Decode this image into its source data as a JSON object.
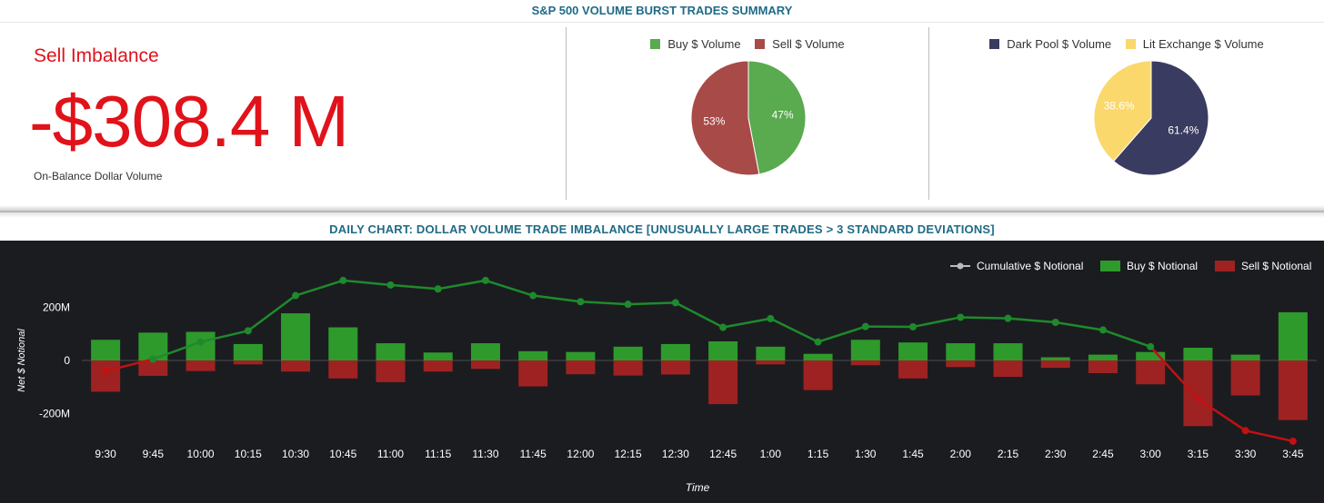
{
  "header": {
    "title": "S&P 500 VOLUME BURST TRADES SUMMARY"
  },
  "imbalance": {
    "label": "Sell Imbalance",
    "value": "-$308.4 M",
    "sublabel": "On-Balance Dollar Volume",
    "color": "#e1121a"
  },
  "pie_buy_sell": {
    "legend": [
      "Buy $ Volume",
      "Sell $ Volume"
    ],
    "slices": [
      {
        "name": "Buy $ Volume",
        "pct": 47,
        "label": "47%",
        "color": "#5aaa4f"
      },
      {
        "name": "Sell $ Volume",
        "pct": 53,
        "label": "53%",
        "color": "#a84a47"
      }
    ]
  },
  "pie_dark_lit": {
    "legend": [
      "Dark Pool $ Volume",
      "Lit Exchange $ Volume"
    ],
    "slices": [
      {
        "name": "Dark Pool $ Volume",
        "pct": 61.4,
        "label": "61.4%",
        "color": "#3a3b60"
      },
      {
        "name": "Lit Exchange $ Volume",
        "pct": 38.6,
        "label": "38.6%",
        "color": "#fad86c"
      }
    ]
  },
  "daily_chart": {
    "title": "DAILY CHART: DOLLAR VOLUME TRADE IMBALANCE [UNUSUALLY LARGE TRADES > 3 STANDARD DEVIATIONS]"
  },
  "chart_data": {
    "type": "bar",
    "xlabel": "Time",
    "ylabel": "Net $ Notional",
    "y_ticks": [
      200,
      0,
      -200
    ],
    "y_tick_labels": [
      "200M",
      "0",
      "-200M"
    ],
    "ylim": [
      -315,
      315
    ],
    "grid": false,
    "legend_position": "top-right",
    "categories": [
      "9:30",
      "9:45",
      "10:00",
      "10:15",
      "10:30",
      "10:45",
      "11:00",
      "11:15",
      "11:30",
      "11:45",
      "12:00",
      "12:15",
      "12:30",
      "12:45",
      "1:00",
      "1:15",
      "1:30",
      "1:45",
      "2:00",
      "2:15",
      "2:30",
      "2:45",
      "3:00",
      "3:15",
      "3:30",
      "3:45"
    ],
    "series": [
      {
        "name": "Cumulative $ Notional",
        "type": "line",
        "color": "#1e8a2c",
        "negative_color": "#c01212",
        "values": [
          -40,
          5,
          70,
          112,
          245,
          302,
          285,
          270,
          302,
          245,
          222,
          212,
          218,
          125,
          158,
          70,
          128,
          127,
          163,
          159,
          144,
          115,
          52,
          -145,
          -265,
          -305
        ]
      },
      {
        "name": "Buy $ Notional",
        "type": "bar",
        "color": "#2e9a2c",
        "values": [
          78,
          105,
          108,
          62,
          178,
          125,
          65,
          30,
          65,
          35,
          32,
          52,
          62,
          72,
          52,
          25,
          78,
          68,
          65,
          65,
          12,
          22,
          32,
          48,
          22,
          182
        ]
      },
      {
        "name": "Sell $ Notional",
        "type": "bar",
        "color": "#9f2222",
        "values": [
          -118,
          -58,
          -40,
          -15,
          -42,
          -68,
          -82,
          -42,
          -32,
          -98,
          -52,
          -57,
          -53,
          -165,
          -15,
          -112,
          -18,
          -68,
          -25,
          -62,
          -28,
          -48,
          -90,
          -248,
          -132,
          -225
        ]
      }
    ]
  }
}
